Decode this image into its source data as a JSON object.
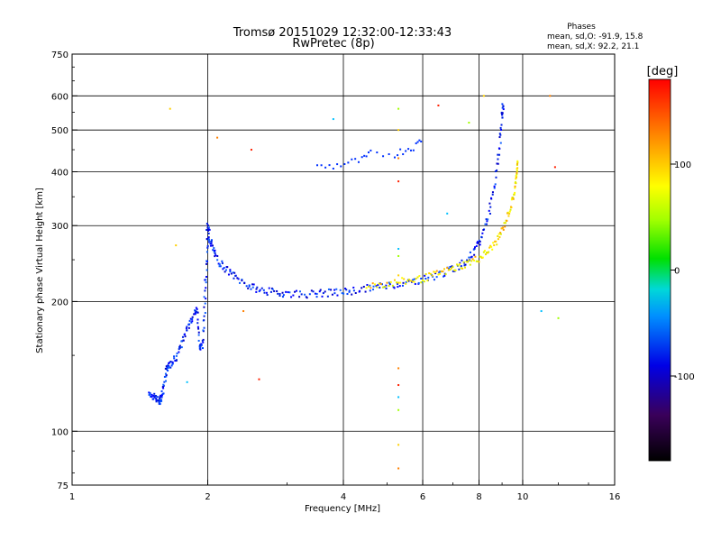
{
  "title": {
    "line1": "Tromsø 20151029 12:32:00-12:33:43",
    "line2": "RwPretec (8p)"
  },
  "stats": {
    "heading": "Phases",
    "o_line": "mean, sd,O: -91.9, 15.8",
    "x_line": "mean, sd,X:  92.2, 21.1"
  },
  "colorbar": {
    "unit": "[deg]",
    "ticks": [
      "100",
      "0",
      "-100"
    ],
    "tick_values": [
      100,
      0,
      -100
    ],
    "range": [
      -180,
      180
    ]
  },
  "chart_data": {
    "type": "scatter",
    "xlabel": "Frequency [MHz]",
    "ylabel": "Stationary phase Virtual Height [km]",
    "x_scale": "log2",
    "y_scale": "log",
    "xlim": [
      1,
      16
    ],
    "ylim": [
      75,
      750
    ],
    "x_ticks": [
      1,
      2,
      4,
      6,
      8,
      10,
      16
    ],
    "x_tick_labels": [
      "1",
      "2",
      "4",
      "6",
      "8",
      "10",
      "16"
    ],
    "y_ticks": [
      75,
      100,
      200,
      300,
      400,
      500,
      600,
      750
    ],
    "y_tick_labels": [
      "75",
      "100",
      "200",
      "300",
      "400",
      "500",
      "600",
      "750"
    ],
    "grid": true,
    "o_trace": [
      [
        1.48,
        123
      ],
      [
        1.52,
        120
      ],
      [
        1.55,
        118
      ],
      [
        1.57,
        118
      ],
      [
        1.58,
        120
      ],
      [
        1.6,
        128
      ],
      [
        1.62,
        140
      ],
      [
        1.65,
        142
      ],
      [
        1.7,
        148
      ],
      [
        1.75,
        160
      ],
      [
        1.8,
        172
      ],
      [
        1.85,
        185
      ],
      [
        1.9,
        192
      ],
      [
        1.92,
        155
      ],
      [
        1.95,
        160
      ],
      [
        1.97,
        200
      ],
      [
        1.99,
        240
      ],
      [
        2.0,
        300
      ],
      [
        2.02,
        280
      ],
      [
        2.05,
        265
      ],
      [
        2.1,
        250
      ],
      [
        2.2,
        238
      ],
      [
        2.3,
        228
      ],
      [
        2.45,
        218
      ],
      [
        2.6,
        213
      ],
      [
        2.8,
        210
      ],
      [
        3.0,
        209
      ],
      [
        3.3,
        208
      ],
      [
        3.6,
        209
      ],
      [
        3.9,
        210
      ],
      [
        4.2,
        212
      ],
      [
        4.6,
        215
      ],
      [
        5.0,
        218
      ],
      [
        5.5,
        221
      ],
      [
        6.0,
        225
      ],
      [
        6.5,
        231
      ],
      [
        7.0,
        238
      ],
      [
        7.5,
        248
      ],
      [
        7.8,
        260
      ],
      [
        8.1,
        280
      ],
      [
        8.4,
        320
      ],
      [
        8.7,
        380
      ],
      [
        8.9,
        460
      ],
      [
        9.0,
        540
      ],
      [
        9.05,
        580
      ]
    ],
    "x_trace": [
      [
        4.5,
        218
      ],
      [
        5.0,
        220
      ],
      [
        5.5,
        223
      ],
      [
        6.0,
        226
      ],
      [
        6.5,
        232
      ],
      [
        7.0,
        238
      ],
      [
        7.5,
        245
      ],
      [
        8.0,
        252
      ],
      [
        8.4,
        262
      ],
      [
        8.8,
        278
      ],
      [
        9.1,
        300
      ],
      [
        9.4,
        330
      ],
      [
        9.6,
        360
      ],
      [
        9.7,
        400
      ],
      [
        9.75,
        420
      ]
    ],
    "f_layer_patches": [
      [
        3.5,
        410
      ],
      [
        3.8,
        412
      ],
      [
        4.1,
        420
      ],
      [
        4.4,
        425
      ],
      [
        4.6,
        440
      ],
      [
        5.2,
        440
      ],
      [
        5.5,
        450
      ],
      [
        5.8,
        460
      ],
      [
        6.0,
        480
      ]
    ],
    "sparse_points": [
      [
        1.65,
        560
      ],
      [
        2.1,
        480
      ],
      [
        2.5,
        450
      ],
      [
        3.8,
        530
      ],
      [
        5.3,
        560
      ],
      [
        5.3,
        500
      ],
      [
        5.3,
        430
      ],
      [
        5.3,
        380
      ],
      [
        5.3,
        265
      ],
      [
        5.3,
        255
      ],
      [
        5.3,
        230
      ],
      [
        5.3,
        140
      ],
      [
        5.3,
        128
      ],
      [
        5.3,
        120
      ],
      [
        5.3,
        112
      ],
      [
        5.3,
        93
      ],
      [
        5.3,
        82
      ],
      [
        6.5,
        570
      ],
      [
        6.8,
        320
      ],
      [
        7.6,
        520
      ],
      [
        8.2,
        600
      ],
      [
        11.5,
        600
      ],
      [
        11.8,
        410
      ],
      [
        11.0,
        190
      ],
      [
        12.0,
        183
      ],
      [
        1.7,
        270
      ],
      [
        2.4,
        190
      ],
      [
        2.6,
        132
      ],
      [
        1.8,
        130
      ]
    ]
  }
}
